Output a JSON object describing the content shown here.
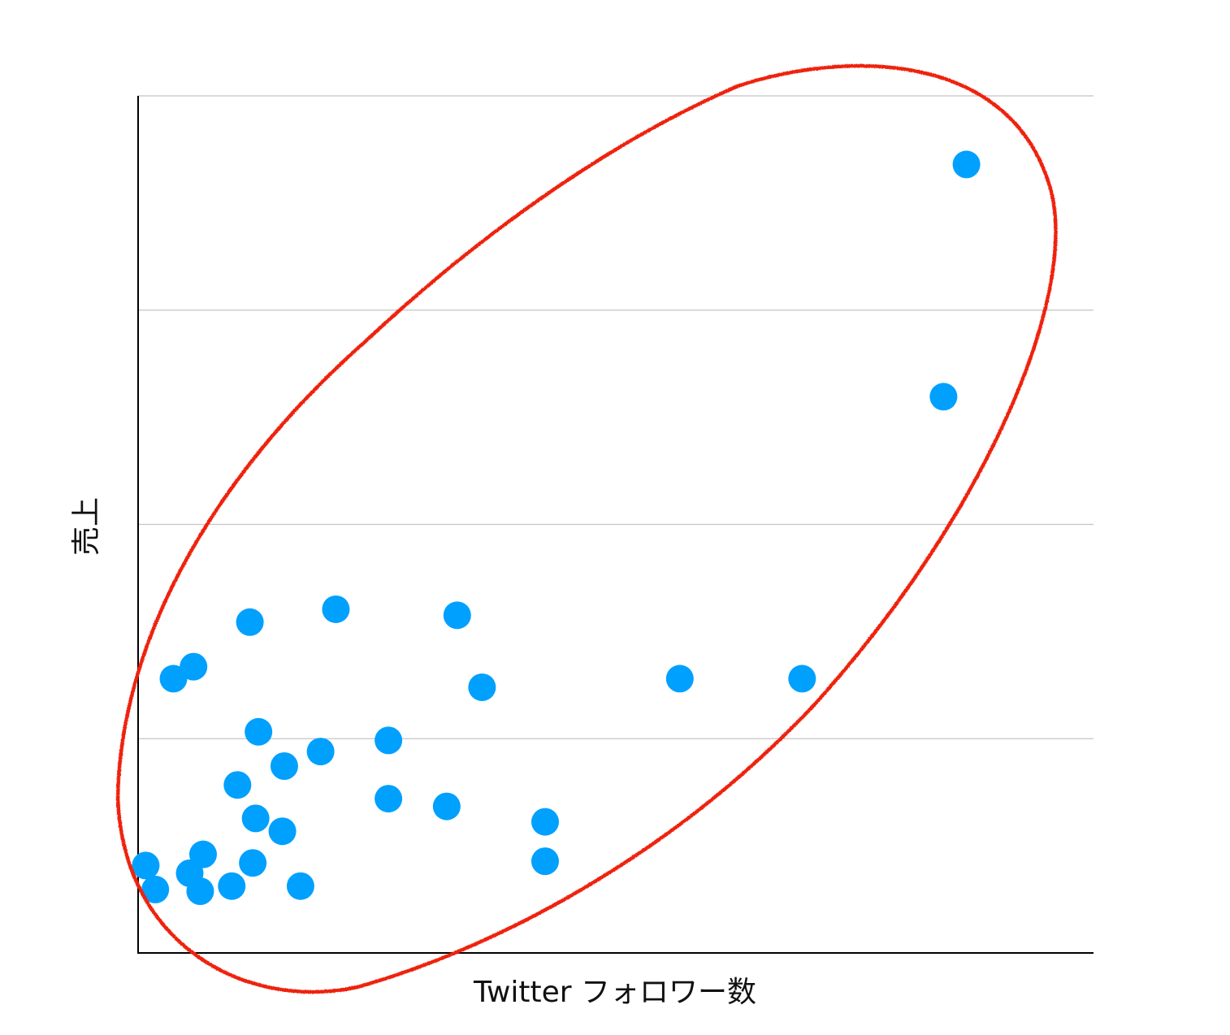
{
  "chart_data": {
    "type": "scatter",
    "title": "",
    "xlabel": "Twitter フォロワー数",
    "ylabel": "売上",
    "xlim": [
      0,
      100
    ],
    "ylim": [
      0,
      100
    ],
    "gridlines_y": [
      25,
      50,
      75,
      100
    ],
    "grid": "horizontal",
    "marker_color": "#00a0ff",
    "annotation_color": "#ee2211",
    "annotation": "hand-drawn ellipse enclosing all points",
    "points": [
      {
        "x": 0.8,
        "y": 10.2
      },
      {
        "x": 1.8,
        "y": 7.4
      },
      {
        "x": 3.7,
        "y": 32.0
      },
      {
        "x": 5.8,
        "y": 33.4
      },
      {
        "x": 5.4,
        "y": 9.3
      },
      {
        "x": 6.8,
        "y": 11.5
      },
      {
        "x": 6.5,
        "y": 7.2
      },
      {
        "x": 9.8,
        "y": 7.8
      },
      {
        "x": 11.7,
        "y": 38.6
      },
      {
        "x": 10.4,
        "y": 19.6
      },
      {
        "x": 12.6,
        "y": 25.8
      },
      {
        "x": 12.3,
        "y": 15.7
      },
      {
        "x": 12.0,
        "y": 10.5
      },
      {
        "x": 15.3,
        "y": 21.8
      },
      {
        "x": 15.1,
        "y": 14.2
      },
      {
        "x": 17.0,
        "y": 7.8
      },
      {
        "x": 19.1,
        "y": 23.5
      },
      {
        "x": 20.7,
        "y": 40.1
      },
      {
        "x": 26.2,
        "y": 24.8
      },
      {
        "x": 26.2,
        "y": 18.0
      },
      {
        "x": 32.3,
        "y": 17.1
      },
      {
        "x": 33.4,
        "y": 39.4
      },
      {
        "x": 36.0,
        "y": 31.0
      },
      {
        "x": 42.6,
        "y": 15.3
      },
      {
        "x": 42.6,
        "y": 10.7
      },
      {
        "x": 56.7,
        "y": 32.0
      },
      {
        "x": 69.5,
        "y": 32.0
      },
      {
        "x": 84.3,
        "y": 64.9
      },
      {
        "x": 86.7,
        "y": 92.0
      }
    ]
  }
}
